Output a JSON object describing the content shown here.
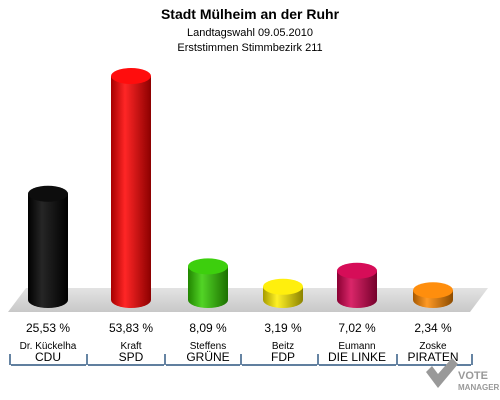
{
  "chart_data": {
    "type": "bar",
    "title": "Stadt Mülheim an der Ruhr",
    "subtitle1": "Landtagswahl 09.05.2010",
    "subtitle2": "Erststimmen Stimmbezirk 211",
    "categories": [
      "Dr. Kückelha",
      "Kraft",
      "Steffens",
      "Beitz",
      "Eumann",
      "Zoske"
    ],
    "parties": [
      "CDU",
      "SPD",
      "GRÜNE",
      "FDP",
      "DIE LINKE",
      "PIRATEN"
    ],
    "values": [
      25.53,
      53.83,
      8.09,
      3.19,
      7.02,
      2.34
    ],
    "value_labels": [
      "25,53 %",
      "53,83 %",
      "8,09 %",
      "3,19 %",
      "7,02 %",
      "2,34 %"
    ],
    "colors": [
      "#000000",
      "#ff0000",
      "#33cc00",
      "#ffee00",
      "#d4004f",
      "#ff8800"
    ],
    "ylim": [
      0,
      60
    ],
    "grid": false,
    "legend": "none"
  },
  "watermark": {
    "line1": "VOTE",
    "line2": "MANAGER"
  }
}
